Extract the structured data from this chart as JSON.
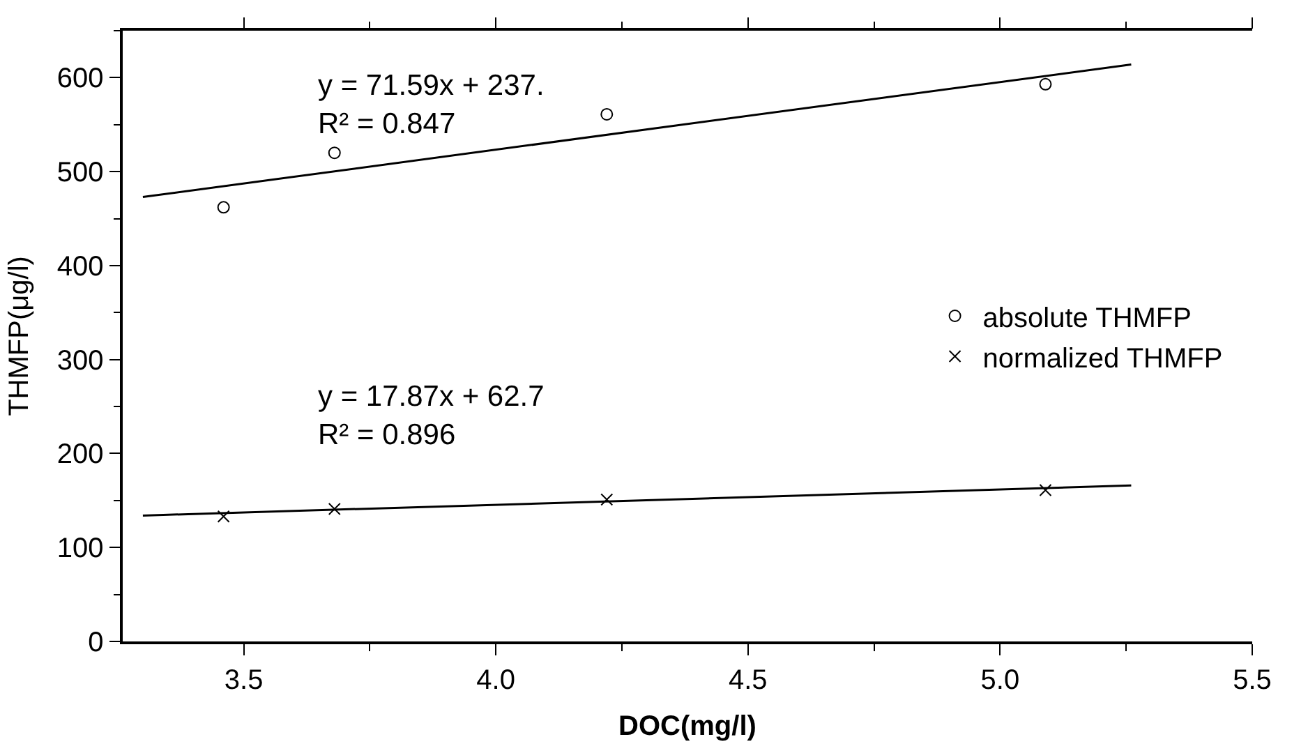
{
  "chart_data": {
    "type": "scatter",
    "xlabel": "DOC(mg/l)",
    "ylabel": "THMFP(μg/l)",
    "xlim": [
      3.26,
      5.5
    ],
    "xticks": [
      3.5,
      {
        "value": 4.0,
        "label": "4.0"
      },
      4.5,
      {
        "value": 5.0,
        "label": "5.0"
      },
      5.5
    ],
    "ylim": [
      0,
      650
    ],
    "yticks": [
      0,
      100,
      200,
      300,
      400,
      500,
      600
    ],
    "legend": "right",
    "series": [
      {
        "name": "absolute THMFP",
        "color": "#000000",
        "marker": "circle",
        "x": [
          3.46,
          3.68,
          4.22,
          5.09
        ],
        "values": [
          462,
          520,
          561,
          593
        ]
      },
      {
        "name": "normalized THMFP",
        "color": "#000000",
        "marker": "cross",
        "x": [
          3.46,
          3.68,
          4.22,
          5.09
        ],
        "values": [
          133,
          141,
          151,
          161
        ]
      },
      {
        "type": "line",
        "color": "#000000",
        "marker": "none",
        "x": [
          3.3,
          5.26
        ],
        "values": [
          473,
          614
        ]
      },
      {
        "type": "line",
        "color": "#000000",
        "marker": "none",
        "x": [
          3.3,
          5.26
        ],
        "values": [
          134,
          166
        ]
      }
    ],
    "annotations": [
      "y = 71.59x + 237.\nR² = 0.847",
      "y = 17.87x + 62.7\nR² = 0.896"
    ]
  }
}
